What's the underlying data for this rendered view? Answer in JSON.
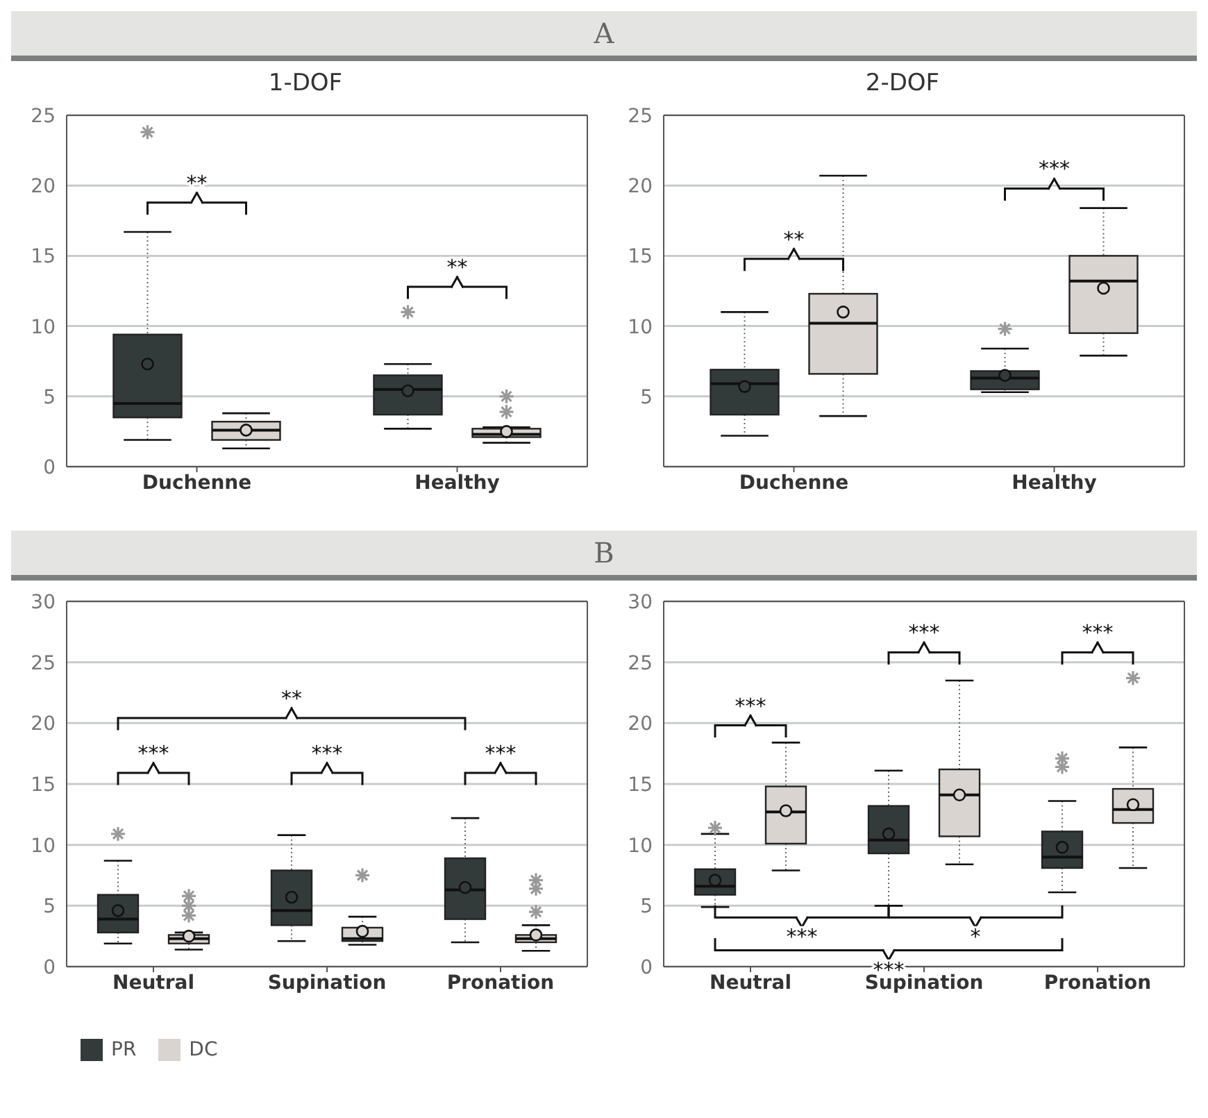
{
  "chart_data": [
    {
      "type": "box",
      "title": "1-DOF",
      "categories": [
        "Duchenne",
        "Healthy"
      ],
      "ylim": [
        0,
        25
      ],
      "yticks": [
        0,
        5,
        10,
        15,
        20,
        25
      ],
      "grid": "y",
      "annotations": [
        "A",
        "**",
        "**"
      ],
      "series": [
        {
          "color": "#333b3a",
          "boxes": [
            {
              "low": 1.9,
              "q1": 3.5,
              "median": 4.5,
              "q3": 9.4,
              "high": 16.7,
              "mean": 7.3,
              "outliers": [
                23.8
              ]
            },
            {
              "low": 2.7,
              "q1": 3.7,
              "median": 5.5,
              "q3": 6.5,
              "high": 7.3,
              "mean": 5.4,
              "outliers": [
                11.0
              ]
            }
          ]
        },
        {
          "color": "#d9d4d0",
          "boxes": [
            {
              "low": 1.3,
              "q1": 1.9,
              "median": 2.6,
              "q3": 3.2,
              "high": 3.8,
              "mean": 2.6
            },
            {
              "low": 1.7,
              "q1": 2.1,
              "median": 2.3,
              "q3": 2.7,
              "high": 2.8,
              "mean": 2.5,
              "outliers": [
                5.0,
                3.9
              ]
            }
          ]
        }
      ]
    },
    {
      "type": "box",
      "title": "2-DOF",
      "categories": [
        "Duchenne",
        "Healthy"
      ],
      "ylim": [
        0,
        25
      ],
      "yticks": [
        5,
        10,
        15,
        20,
        25
      ],
      "grid": "y",
      "annotations": [
        "**",
        "***"
      ],
      "series": [
        {
          "color": "#333b3a",
          "boxes": [
            {
              "low": 2.2,
              "q1": 3.7,
              "median": 5.9,
              "q3": 6.9,
              "high": 11.0,
              "mean": 5.7
            },
            {
              "low": 5.3,
              "q1": 5.5,
              "median": 6.3,
              "q3": 6.8,
              "high": 8.4,
              "mean": 6.5,
              "outliers": [
                9.8
              ]
            }
          ]
        },
        {
          "color": "#d9d4d0",
          "boxes": [
            {
              "low": 3.6,
              "q1": 6.6,
              "median": 10.2,
              "q3": 12.3,
              "high": 20.7,
              "mean": 11.0
            },
            {
              "low": 7.9,
              "q1": 9.5,
              "median": 13.2,
              "q3": 15.0,
              "high": 18.4,
              "mean": 12.7
            }
          ]
        }
      ]
    },
    {
      "type": "box",
      "categories": [
        "Neutral",
        "Supination",
        "Pronation"
      ],
      "ylim": [
        0,
        30
      ],
      "yticks": [
        0,
        5,
        10,
        15,
        20,
        25,
        30
      ],
      "grid": "y",
      "legend": "bottom",
      "annotations": [
        "B",
        "**",
        "***",
        "***",
        "***"
      ],
      "series": [
        {
          "name": "PR",
          "color": "#333b3a",
          "boxes": [
            {
              "low": 1.9,
              "q1": 2.8,
              "median": 3.9,
              "q3": 5.9,
              "high": 8.7,
              "mean": 4.6,
              "outliers": [
                10.9
              ]
            },
            {
              "low": 2.1,
              "q1": 3.4,
              "median": 4.6,
              "q3": 7.9,
              "high": 10.8,
              "mean": 5.7
            },
            {
              "low": 2.0,
              "q1": 3.9,
              "median": 6.3,
              "q3": 8.9,
              "high": 12.2,
              "mean": 6.5
            }
          ]
        },
        {
          "name": "DC",
          "color": "#d9d4d0",
          "boxes": [
            {
              "low": 1.4,
              "q1": 1.9,
              "median": 2.3,
              "q3": 2.6,
              "high": 2.8,
              "mean": 2.5,
              "outliers": [
                5.8,
                5.0,
                4.2
              ]
            },
            {
              "low": 1.8,
              "q1": 2.1,
              "median": 2.3,
              "q3": 3.2,
              "high": 4.1,
              "mean": 2.9,
              "outliers": [
                7.5
              ]
            },
            {
              "low": 1.3,
              "q1": 2.0,
              "median": 2.3,
              "q3": 2.6,
              "high": 3.4,
              "mean": 2.6,
              "outliers": [
                7.1,
                6.4,
                4.5
              ]
            }
          ]
        }
      ]
    },
    {
      "type": "box",
      "categories": [
        "Neutral",
        "Supination",
        "Pronation"
      ],
      "ylim": [
        0,
        30
      ],
      "yticks": [
        0,
        5,
        10,
        15,
        20,
        25,
        30
      ],
      "grid": "y",
      "annotations": [
        "***",
        "***",
        "***",
        "***",
        "*",
        "***"
      ],
      "series": [
        {
          "color": "#333b3a",
          "boxes": [
            {
              "low": 4.9,
              "q1": 5.9,
              "median": 6.6,
              "q3": 8.0,
              "high": 10.9,
              "mean": 7.1,
              "outliers": [
                11.4
              ]
            },
            {
              "low": 5.0,
              "q1": 9.3,
              "median": 10.4,
              "q3": 13.2,
              "high": 16.1,
              "mean": 10.9
            },
            {
              "low": 6.1,
              "q1": 8.1,
              "median": 9.0,
              "q3": 11.1,
              "high": 13.6,
              "mean": 9.8,
              "outliers": [
                17.1,
                16.4
              ]
            }
          ]
        },
        {
          "color": "#d9d4d0",
          "boxes": [
            {
              "low": 7.9,
              "q1": 10.1,
              "median": 12.7,
              "q3": 14.8,
              "high": 18.4,
              "mean": 12.8
            },
            {
              "low": 8.4,
              "q1": 10.7,
              "median": 14.1,
              "q3": 16.2,
              "high": 23.5,
              "mean": 14.1
            },
            {
              "low": 8.1,
              "q1": 11.8,
              "median": 12.9,
              "q3": 14.6,
              "high": 18.0,
              "mean": 13.3,
              "outliers": [
                23.7
              ]
            }
          ]
        }
      ]
    }
  ]
}
